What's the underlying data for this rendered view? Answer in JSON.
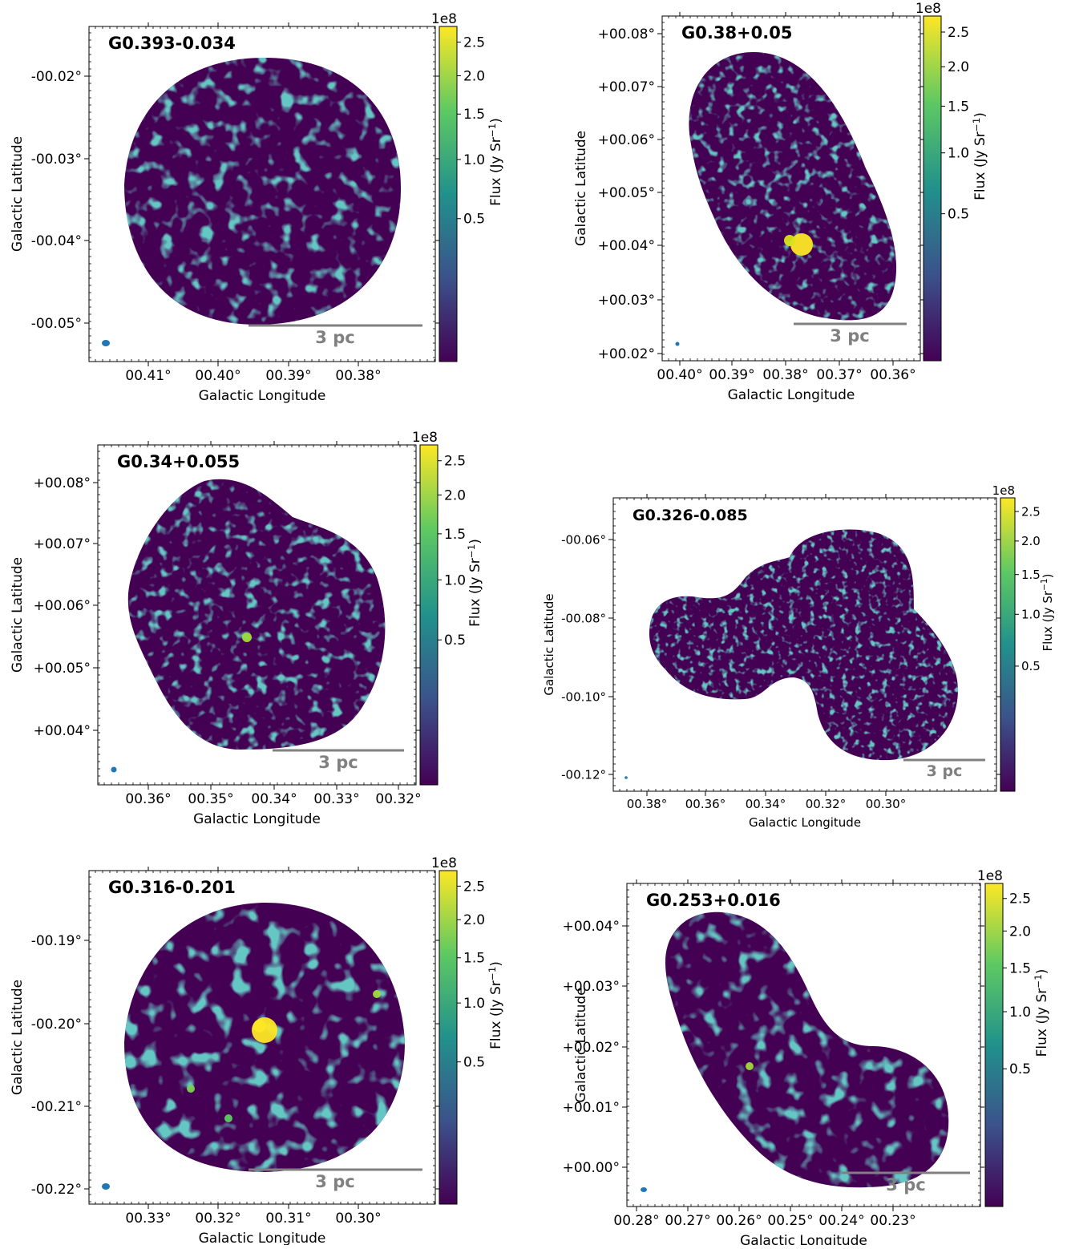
{
  "figure": {
    "colorbar_label": "Flux (Jy Sr$^{-1}$)",
    "colorbar_label_text": "Flux (Jy Sr",
    "colorbar_label_sup": "−1",
    "colorbar_label_close": ")",
    "colorbar_exponent": "1e8",
    "colorbar_ticks": [
      "2.5",
      "2.0",
      "1.5",
      "1.0",
      "0.5"
    ],
    "colorbar_tick_values": [
      2.5,
      2.0,
      1.5,
      1.0,
      0.5
    ],
    "colorbar_scale": "sqrt",
    "colorbar_range": [
      0,
      2.75
    ],
    "colormap": "viridis",
    "colormap_colors": [
      "#440154",
      "#3b528b",
      "#21918c",
      "#5ec962",
      "#fde725"
    ],
    "scalebar_label": "3 pc",
    "scalebar_color": "#808080",
    "beam_color": "#1f77b4",
    "xlabel": "Galactic Longitude",
    "ylabel": "Galactic Latitude"
  },
  "chart_data": [
    {
      "type": "heatmap",
      "title": "G0.393-0.034",
      "xlabel": "Galactic Longitude",
      "ylabel": "Galactic Latitude",
      "xticks": [
        "00.41°",
        "00.40°",
        "00.39°",
        "00.38°"
      ],
      "yticks": [
        "-00.02°",
        "-00.03°",
        "-00.04°",
        "-00.05°"
      ],
      "colorbar_ticks": [
        "2.5",
        "2.0",
        "1.5",
        "1.0",
        "0.5"
      ],
      "colorbar_exponent": "1e8",
      "scalebar": "3 pc"
    },
    {
      "type": "heatmap",
      "title": "G0.38+0.05",
      "xlabel": "Galactic Longitude",
      "ylabel": "Galactic Latitude",
      "xticks": [
        "00.40°",
        "00.39°",
        "00.38°",
        "00.37°",
        "00.36°"
      ],
      "yticks": [
        "+00.08°",
        "+00.07°",
        "+00.06°",
        "+00.05°",
        "+00.04°",
        "+00.03°",
        "+00.02°"
      ],
      "colorbar_ticks": [
        "2.5",
        "2.0",
        "1.5",
        "1.0",
        "0.5"
      ],
      "colorbar_exponent": "1e8",
      "scalebar": "3 pc"
    },
    {
      "type": "heatmap",
      "title": "G0.34+0.055",
      "xlabel": "Galactic Longitude",
      "ylabel": "Galactic Latitude",
      "xticks": [
        "00.36°",
        "00.35°",
        "00.34°",
        "00.33°",
        "00.32°"
      ],
      "yticks": [
        "+00.08°",
        "+00.07°",
        "+00.06°",
        "+00.05°",
        "+00.04°"
      ],
      "colorbar_ticks": [
        "2.5",
        "2.0",
        "1.5",
        "1.0",
        "0.5"
      ],
      "colorbar_exponent": "1e8",
      "scalebar": "3 pc"
    },
    {
      "type": "heatmap",
      "title": "G0.326-0.085",
      "xlabel": "Galactic Longitude",
      "ylabel": "Galactic Latitude",
      "xticks": [
        "00.38°",
        "00.36°",
        "00.34°",
        "00.32°",
        "00.30°"
      ],
      "yticks": [
        "-00.06°",
        "-00.08°",
        "-00.10°",
        "-00.12°"
      ],
      "colorbar_ticks": [
        "2.5",
        "2.0",
        "1.5",
        "1.0",
        "0.5"
      ],
      "colorbar_exponent": "1e8",
      "scalebar": "3 pc"
    },
    {
      "type": "heatmap",
      "title": "G0.316-0.201",
      "xlabel": "Galactic Longitude",
      "ylabel": "Galactic Latitude",
      "xticks": [
        "00.33°",
        "00.32°",
        "00.31°",
        "00.30°"
      ],
      "yticks": [
        "-00.19°",
        "-00.20°",
        "-00.21°",
        "-00.22°"
      ],
      "colorbar_ticks": [
        "2.5",
        "2.0",
        "1.5",
        "1.0",
        "0.5"
      ],
      "colorbar_exponent": "1e8",
      "scalebar": "3 pc"
    },
    {
      "type": "heatmap",
      "title": "G0.253+0.016",
      "xlabel": "Galactic Longitude",
      "ylabel": "Galactic Latitude",
      "xticks": [
        "00.28°",
        "00.27°",
        "00.26°",
        "00.25°",
        "00.24°",
        "00.23°"
      ],
      "yticks": [
        "+00.04°",
        "+00.03°",
        "+00.02°",
        "+00.01°",
        "+00.00°"
      ],
      "colorbar_ticks": [
        "2.5",
        "2.0",
        "1.5",
        "1.0",
        "0.5"
      ],
      "colorbar_exponent": "1e8",
      "scalebar": "3 pc"
    }
  ]
}
